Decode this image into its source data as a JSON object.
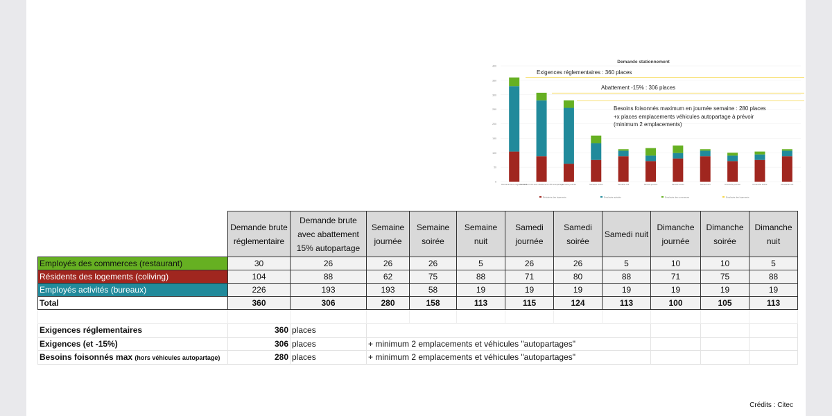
{
  "chart_data": {
    "type": "bar",
    "stacked": true,
    "title": "Demande stationnement",
    "ylim": [
      0,
      400
    ],
    "yticks": [
      0,
      50,
      100,
      150,
      200,
      250,
      300,
      350,
      400
    ],
    "categories": [
      "Demande brute réglementaire",
      "Demande brute avec abattement 15% autopartage",
      "Semaine journée",
      "Semaine soirée",
      "Semaine nuit",
      "Samedi journée",
      "Samedi soirée",
      "Samedi nuit",
      "Dimanche journée",
      "Dimanche soirée",
      "Dimanche nuit"
    ],
    "series": [
      {
        "name": "Résidents des logements",
        "color": "#a0261f",
        "values": [
          104,
          88,
          62,
          75,
          88,
          71,
          80,
          88,
          71,
          75,
          88
        ]
      },
      {
        "name": "Employés activités",
        "color": "#218a9b",
        "values": [
          226,
          193,
          193,
          58,
          19,
          19,
          19,
          19,
          19,
          19,
          19
        ]
      },
      {
        "name": "Employés des commerces",
        "color": "#66b022",
        "values": [
          30,
          26,
          26,
          26,
          5,
          26,
          26,
          5,
          10,
          10,
          5
        ]
      },
      {
        "name": "Employés des logements",
        "color": "#f5d547",
        "values": [
          0,
          0,
          0,
          0,
          0,
          0,
          0,
          0,
          0,
          0,
          0
        ]
      }
    ],
    "annotations": [
      {
        "text": "Exigences réglementaires : 360 places",
        "y": 360
      },
      {
        "text": "Abattement -15% : 306 places",
        "y": 306
      },
      {
        "text": "Besoins foisonnés maximum en journée semaine : 280 places",
        "text2": "+x places emplacements véhicules autopartage à prévoir",
        "text3": "(minimum 2 emplacements)",
        "y": 280
      }
    ],
    "legend": "bottom"
  },
  "table": {
    "headers": [
      "Demande brute réglementaire",
      "Demande brute avec abattement 15% autopartage",
      "Semaine journée",
      "Semaine soirée",
      "Semaine nuit",
      "Samedi journée",
      "Samedi soirée",
      "Samedi nuit",
      "Dimanche journée",
      "Dimanche soirée",
      "Dimanche nuit"
    ],
    "rows": [
      {
        "label": "Employés des commerces (restaurant)",
        "color": "#66b022",
        "text": "#111",
        "values": [
          "30",
          "26",
          "26",
          "26",
          "5",
          "26",
          "26",
          "5",
          "10",
          "10",
          "5"
        ]
      },
      {
        "label": "Résidents des logements (coliving)",
        "color": "#a0261f",
        "text": "#fff",
        "values": [
          "104",
          "88",
          "62",
          "75",
          "88",
          "71",
          "80",
          "88",
          "71",
          "75",
          "88"
        ]
      },
      {
        "label": "Employés activités (bureaux)",
        "color": "#218a9b",
        "text": "#fff",
        "values": [
          "226",
          "193",
          "193",
          "58",
          "19",
          "19",
          "19",
          "19",
          "19",
          "19",
          "19"
        ]
      }
    ],
    "total": {
      "label": "Total",
      "values": [
        "360",
        "306",
        "280",
        "158",
        "113",
        "115",
        "124",
        "113",
        "100",
        "105",
        "113"
      ]
    }
  },
  "summary": [
    {
      "label": "Exigences réglementaires",
      "small": "",
      "value": "360",
      "unit": "places",
      "note": ""
    },
    {
      "label": "Exigences (et -15%)",
      "small": "",
      "value": "306",
      "unit": "places",
      "note": "+ minimum 2 emplacements et véhicules \"autopartages\""
    },
    {
      "label": "Besoins foisonnés max",
      "small": "(hors véhicules autopartage)",
      "value": "280",
      "unit": "places",
      "note": "+ minimum 2 emplacements et véhicules \"autopartages\""
    }
  ],
  "credits": "Crédits : Citec"
}
